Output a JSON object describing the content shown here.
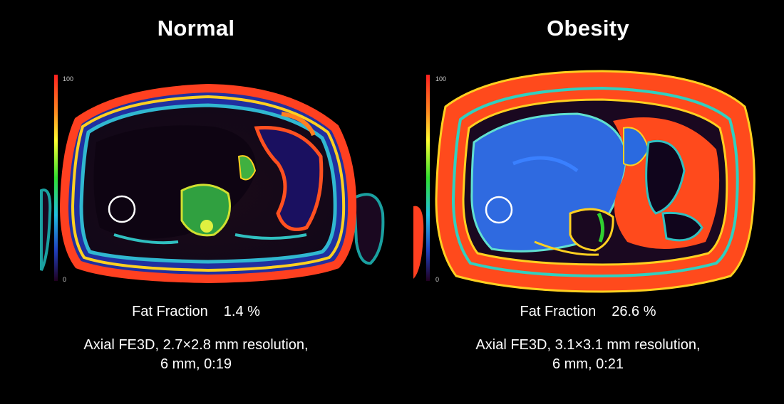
{
  "panels": [
    {
      "title": "Normal",
      "fat_fraction": {
        "label": "Fat Fraction",
        "value": "1.4 %"
      },
      "protocol_line1": "Axial FE3D, 2.7×2.8 mm resolution,",
      "protocol_line2": "6 mm, 0:19",
      "scale": {
        "max_label": "100",
        "min_label": "0"
      }
    },
    {
      "title": "Obesity",
      "fat_fraction": {
        "label": "Fat Fraction",
        "value": "26.6 %"
      },
      "protocol_line1": "Axial FE3D, 3.1×3.1 mm resolution,",
      "protocol_line2": "6 mm, 0:21",
      "scale": {
        "max_label": "100",
        "min_label": "0"
      }
    }
  ],
  "colors": {
    "background": "#000000",
    "fat_high": "#ff3a14",
    "fat_mid": "#ffd21a",
    "water_tissue": "#2a66d8",
    "roi_circle": "#ffffff"
  }
}
